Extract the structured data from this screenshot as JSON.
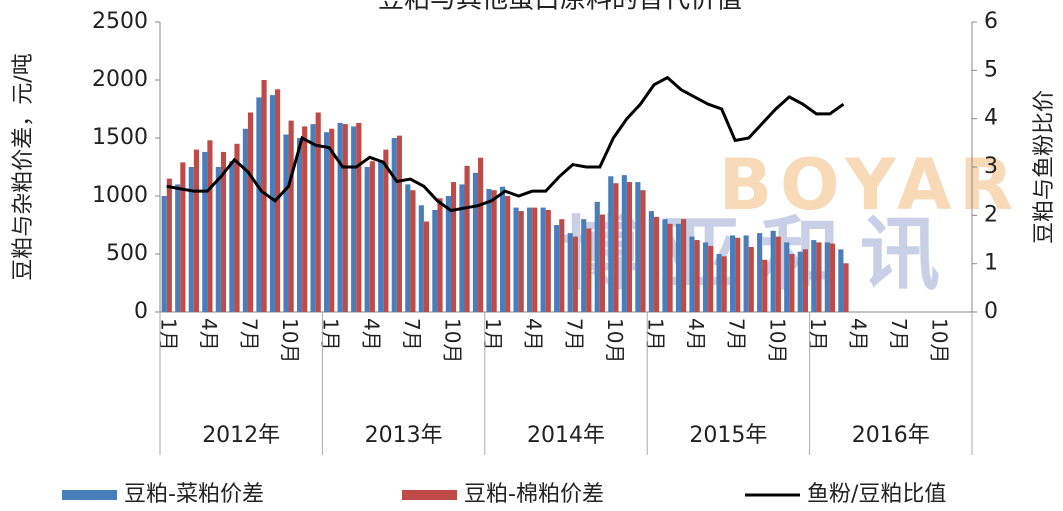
{
  "chart_data": {
    "type": "bar_line",
    "title": "豆粕与其他蛋白原料的替代价值",
    "y_label": "豆粕与杂粕价差，元/吨",
    "y2_label": "豆粕与鱼粉比价",
    "watermark": [
      "BOYAR",
      "博亚和讯"
    ],
    "categories": [
      "1月",
      null,
      null,
      "4月",
      null,
      null,
      "7月",
      null,
      null,
      "10月",
      null,
      null,
      "1月",
      null,
      null,
      "4月",
      null,
      null,
      "7月",
      null,
      null,
      "10月",
      null,
      null,
      "1月",
      null,
      null,
      "4月",
      null,
      null,
      "7月",
      null,
      null,
      "10月",
      null,
      null,
      "1月",
      null,
      null,
      "4月",
      null,
      null,
      "7月",
      null,
      null,
      "10月",
      null,
      null,
      "1月",
      null,
      null,
      "4月",
      null,
      null,
      "7月",
      null,
      null,
      "10月",
      null,
      null
    ],
    "year_labels": [
      "2012年",
      "2013年",
      "2014年",
      "2015年",
      "2016年"
    ],
    "series": [
      {
        "name": "豆粕-菜粕价差",
        "color": "#4a7ebb",
        "kind": "bar",
        "values": [
          1000,
          1100,
          1250,
          1380,
          1250,
          1300,
          1580,
          1850,
          1870,
          1530,
          1500,
          1620,
          1550,
          1630,
          1600,
          1250,
          1300,
          1500,
          1100,
          920,
          880,
          1000,
          1100,
          1200,
          1060,
          1080,
          900,
          900,
          900,
          750,
          680,
          800,
          950,
          1170,
          1180,
          1120,
          870,
          800,
          760,
          650,
          600,
          500,
          660,
          660,
          680,
          700,
          600,
          520,
          620,
          600,
          540,
          null,
          null,
          null,
          null,
          null,
          null,
          null,
          null,
          null
        ]
      },
      {
        "name": "豆粕-棉粕价差",
        "color": "#be4b48",
        "kind": "bar",
        "values": [
          1150,
          1290,
          1400,
          1480,
          1380,
          1450,
          1720,
          2000,
          1920,
          1650,
          1600,
          1720,
          1580,
          1620,
          1630,
          1300,
          1400,
          1520,
          1050,
          780,
          980,
          1120,
          1260,
          1330,
          1050,
          1000,
          870,
          900,
          880,
          800,
          650,
          720,
          840,
          1110,
          1120,
          1050,
          820,
          760,
          800,
          620,
          570,
          480,
          640,
          560,
          450,
          650,
          500,
          540,
          600,
          590,
          420,
          null,
          null,
          null,
          null,
          null,
          null,
          null,
          null,
          null
        ]
      },
      {
        "name": "鱼粉/豆粕比值",
        "color": "#000000",
        "kind": "line",
        "axis": "y2",
        "values": [
          2.6,
          2.55,
          2.5,
          2.5,
          2.8,
          3.15,
          2.9,
          2.5,
          2.3,
          2.6,
          3.6,
          3.45,
          3.4,
          3.0,
          3.0,
          3.2,
          3.1,
          2.7,
          2.75,
          2.6,
          2.3,
          2.1,
          2.15,
          2.2,
          2.3,
          2.5,
          2.4,
          2.5,
          2.5,
          2.8,
          3.05,
          3.0,
          3.0,
          3.6,
          4.0,
          4.3,
          4.7,
          4.85,
          4.6,
          4.45,
          4.3,
          4.2,
          3.55,
          3.6,
          3.9,
          4.2,
          4.45,
          4.3,
          4.1,
          4.1,
          4.3,
          null,
          null,
          null,
          null,
          null,
          null,
          null,
          null,
          null
        ]
      }
    ],
    "ylim": [
      0,
      2500
    ],
    "yticks": [
      0,
      500,
      1000,
      1500,
      2000,
      2500
    ],
    "y2lim": [
      0,
      6
    ],
    "y2ticks": [
      0,
      1,
      2,
      3,
      4,
      5,
      6
    ]
  }
}
